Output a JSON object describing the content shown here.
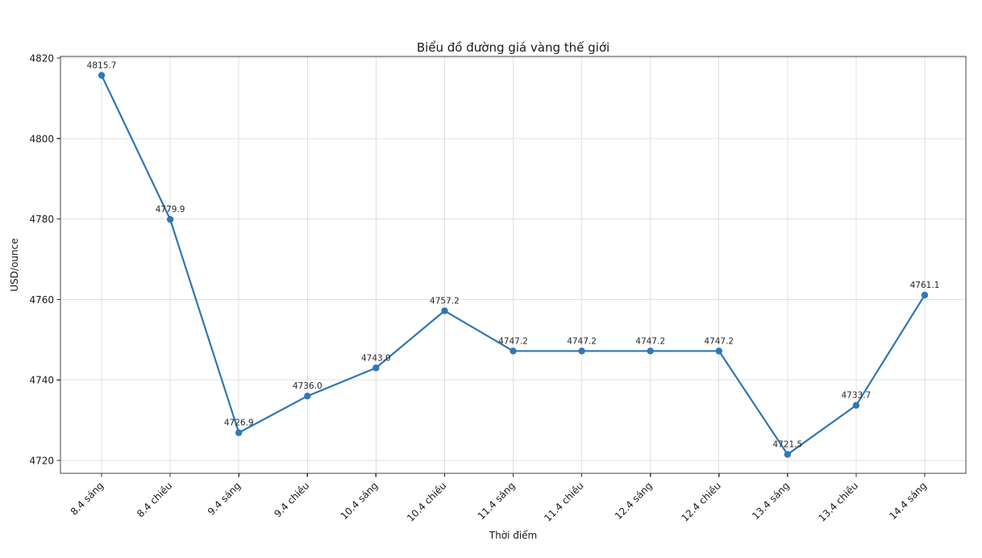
{
  "window": {
    "background": "#ffffff"
  },
  "chart_data": {
    "type": "line",
    "title": "Biểu đồ đường giá vàng thế giới",
    "xlabel": "Thời điểm",
    "ylabel": "USD/ounce",
    "categories": [
      "8.4 sáng",
      "8.4 chiều",
      "9.4 sáng",
      "9.4 chiều",
      "10.4 sáng",
      "10.4 chiều",
      "11.4 sáng",
      "11.4 chiều",
      "12.4 sáng",
      "12.4 chiều",
      "13.4 sáng",
      "13.4 chiều",
      "14.4 sáng"
    ],
    "values": [
      4815.7,
      4779.9,
      4726.9,
      4736.0,
      4743.0,
      4757.2,
      4747.2,
      4747.2,
      4747.2,
      4747.2,
      4721.5,
      4733.7,
      4761.1
    ],
    "data_labels": [
      "4815.7",
      "4779.9",
      "4726.9",
      "4736.0",
      "4743.0",
      "4757.2",
      "4747.2",
      "4747.2",
      "4747.2",
      "4747.2",
      "4721.5",
      "4733.7",
      "4761.1"
    ],
    "yticks": [
      4720,
      4740,
      4760,
      4780,
      4800,
      4820
    ],
    "ylim": [
      4716.8,
      4820.4
    ],
    "grid": true,
    "legend": "none",
    "line_color": "#2f77b5",
    "marker": "circle",
    "grid_color": "#e0e0e0",
    "spine_color": "#444444",
    "tick_color": "#333333",
    "text_color": "#1a1a1a"
  }
}
